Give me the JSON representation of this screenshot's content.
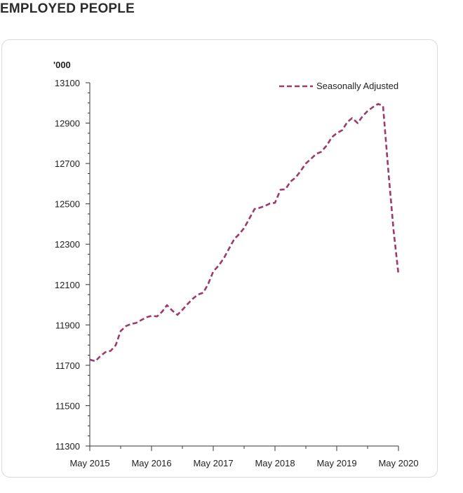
{
  "page": {
    "title": "EMPLOYED PEOPLE"
  },
  "chart_data": {
    "type": "line",
    "title": "EMPLOYED PEOPLE",
    "ylabel": "'000",
    "xlabel": "",
    "ylim": [
      11300,
      13100
    ],
    "yticks": [
      11300,
      11500,
      11700,
      11900,
      12100,
      12300,
      12500,
      12700,
      12900,
      13100
    ],
    "x_tick_labels": [
      "May 2015",
      "May 2016",
      "May 2017",
      "May 2018",
      "May 2019",
      "May 2020"
    ],
    "x_range_years": [
      2015.33,
      2020.33
    ],
    "legend": {
      "position": "top-right"
    },
    "grid": false,
    "series": [
      {
        "name": "Seasonally Adjusted",
        "style": "dashed",
        "color": "#9c3b6b",
        "points": [
          [
            2015.33,
            11728
          ],
          [
            2015.42,
            11720
          ],
          [
            2015.5,
            11745
          ],
          [
            2015.58,
            11765
          ],
          [
            2015.67,
            11772
          ],
          [
            2015.75,
            11800
          ],
          [
            2015.83,
            11870
          ],
          [
            2015.92,
            11895
          ],
          [
            2016.0,
            11905
          ],
          [
            2016.08,
            11910
          ],
          [
            2016.17,
            11925
          ],
          [
            2016.25,
            11938
          ],
          [
            2016.33,
            11945
          ],
          [
            2016.42,
            11942
          ],
          [
            2016.5,
            11965
          ],
          [
            2016.58,
            11998
          ],
          [
            2016.67,
            11970
          ],
          [
            2016.75,
            11950
          ],
          [
            2016.83,
            11975
          ],
          [
            2016.92,
            12005
          ],
          [
            2017.0,
            12030
          ],
          [
            2017.08,
            12050
          ],
          [
            2017.17,
            12060
          ],
          [
            2017.25,
            12105
          ],
          [
            2017.33,
            12165
          ],
          [
            2017.42,
            12195
          ],
          [
            2017.5,
            12230
          ],
          [
            2017.58,
            12275
          ],
          [
            2017.67,
            12325
          ],
          [
            2017.75,
            12350
          ],
          [
            2017.83,
            12380
          ],
          [
            2017.92,
            12430
          ],
          [
            2018.0,
            12475
          ],
          [
            2018.08,
            12480
          ],
          [
            2018.17,
            12490
          ],
          [
            2018.25,
            12502
          ],
          [
            2018.33,
            12505
          ],
          [
            2018.42,
            12570
          ],
          [
            2018.5,
            12572
          ],
          [
            2018.58,
            12610
          ],
          [
            2018.67,
            12632
          ],
          [
            2018.75,
            12665
          ],
          [
            2018.83,
            12700
          ],
          [
            2018.92,
            12725
          ],
          [
            2019.0,
            12748
          ],
          [
            2019.08,
            12758
          ],
          [
            2019.17,
            12790
          ],
          [
            2019.25,
            12830
          ],
          [
            2019.33,
            12850
          ],
          [
            2019.42,
            12865
          ],
          [
            2019.5,
            12905
          ],
          [
            2019.58,
            12925
          ],
          [
            2019.67,
            12900
          ],
          [
            2019.75,
            12935
          ],
          [
            2019.83,
            12960
          ],
          [
            2019.92,
            12980
          ],
          [
            2020.0,
            12995
          ],
          [
            2020.08,
            12985
          ],
          [
            2020.17,
            12650
          ],
          [
            2020.25,
            12370
          ],
          [
            2020.33,
            12150
          ]
        ]
      }
    ]
  }
}
